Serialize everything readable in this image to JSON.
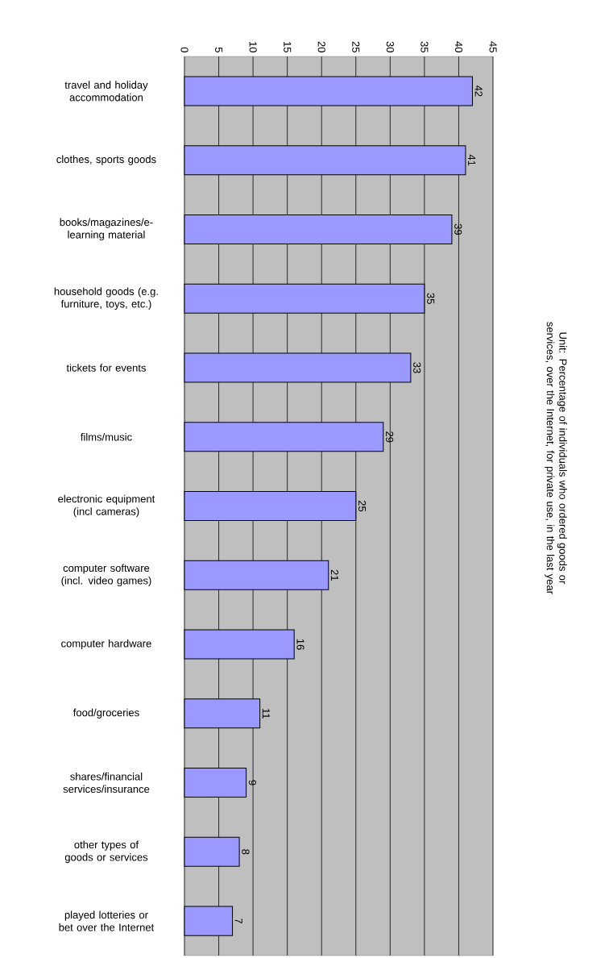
{
  "chart_data": {
    "type": "bar",
    "orientation": "horizontal",
    "title": "Unit: Percentage of individuals who ordered goods or services, over the Internet, for private use, in the last year",
    "categories": [
      "travel and holiday accommodation",
      "clothes, sports goods",
      "books/magazines/e-learning material",
      "household goods (e.g. furniture, toys, etc.)",
      "tickets for events",
      "films/music",
      "electronic equipment (incl cameras)",
      "computer software (incl. video games)",
      "computer hardware",
      "food/groceries",
      "shares/financial services/insurance",
      "other types of goods or services",
      "played lotteries or bet over the Internet"
    ],
    "values": [
      42,
      41,
      39,
      35,
      33,
      29,
      25,
      21,
      16,
      11,
      9,
      8,
      7
    ],
    "color": "#9999ff",
    "xlim": [
      0,
      45
    ],
    "xticks": [
      0,
      5,
      10,
      15,
      20,
      25,
      30,
      35,
      40,
      45
    ],
    "grid": "x",
    "data_labels": true
  }
}
